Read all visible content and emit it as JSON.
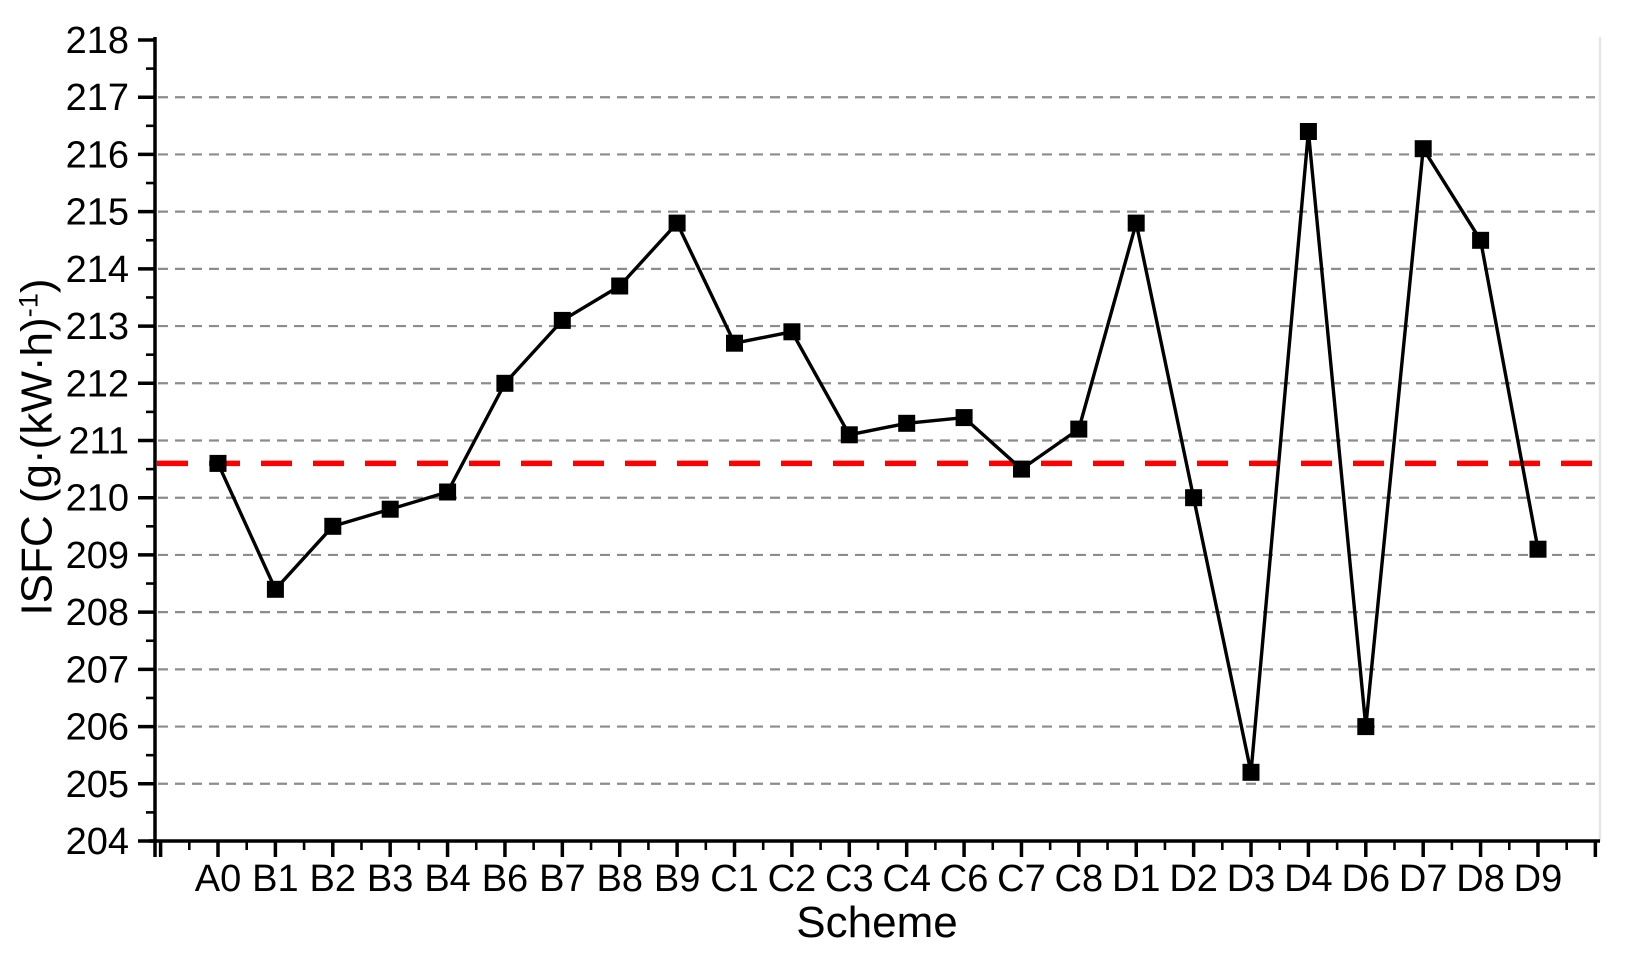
{
  "chart_data": {
    "type": "line",
    "title": "",
    "xlabel": "Scheme",
    "ylabel_main": "ISFC (g·(kW·h)",
    "ylabel_sup": "-1",
    "ylabel_close": ")",
    "categories": [
      "A0",
      "B1",
      "B2",
      "B3",
      "B4",
      "B6",
      "B7",
      "B8",
      "B9",
      "C1",
      "C2",
      "C3",
      "C4",
      "C6",
      "C7",
      "C8",
      "D1",
      "D2",
      "D3",
      "D4",
      "D6",
      "D7",
      "D8",
      "D9"
    ],
    "series": [
      {
        "name": "ISFC",
        "values": [
          210.6,
          208.4,
          209.5,
          209.8,
          210.1,
          212.0,
          213.1,
          213.7,
          214.8,
          212.7,
          212.9,
          211.1,
          211.3,
          211.4,
          210.5,
          211.2,
          214.8,
          210.0,
          205.2,
          216.4,
          206.0,
          216.1,
          214.5,
          209.1
        ]
      }
    ],
    "baseline": {
      "value": 210.6,
      "color": "#fe0000",
      "style": "dashed"
    },
    "ylim": [
      204,
      218
    ],
    "ytick_step": 1,
    "ytick_minor_step": 0.5,
    "grid": "horizontal-dashed-major-only",
    "legend": "none",
    "marker": "square",
    "line_color": "#000000",
    "marker_color": "#000000",
    "grid_color": "#8c8c8c",
    "axis_color": "#000000",
    "right_border_color": "#e6e6e6"
  }
}
